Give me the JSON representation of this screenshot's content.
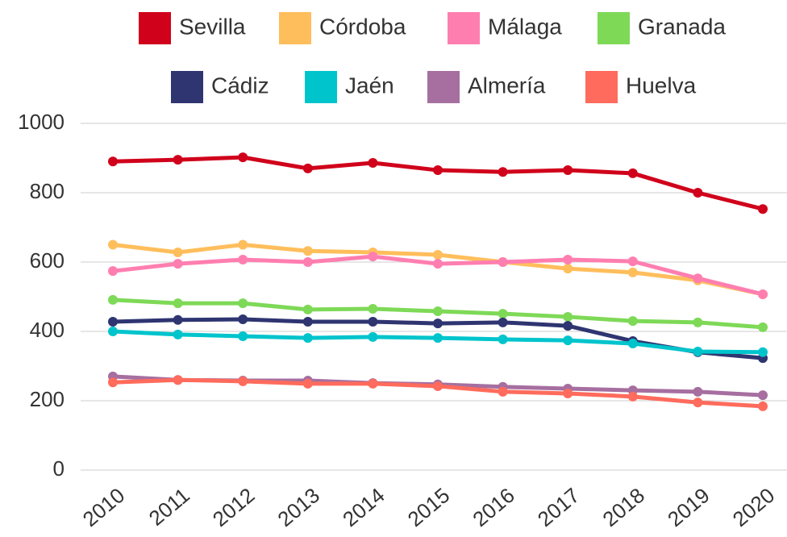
{
  "chart_data": {
    "type": "line",
    "x": [
      "2010",
      "2011",
      "2012",
      "2013",
      "2014",
      "2015",
      "2016",
      "2017",
      "2018",
      "2019",
      "2020"
    ],
    "ylim": [
      0,
      1000
    ],
    "yticks": [
      0,
      200,
      400,
      600,
      800,
      1000
    ],
    "grid": true,
    "legend": "top",
    "series": [
      {
        "name": "Sevilla",
        "color": "#d0021b",
        "values": [
          890,
          895,
          902,
          870,
          886,
          865,
          860,
          865,
          856,
          800,
          753
        ]
      },
      {
        "name": "Córdoba",
        "color": "#ffbe5c",
        "values": [
          650,
          628,
          650,
          632,
          628,
          621,
          600,
          581,
          570,
          547,
          507
        ]
      },
      {
        "name": "Málaga",
        "color": "#ff7eb0",
        "values": [
          574,
          595,
          607,
          600,
          616,
          595,
          600,
          607,
          602,
          553,
          507
        ]
      },
      {
        "name": "Granada",
        "color": "#7ed957",
        "values": [
          491,
          481,
          481,
          463,
          465,
          458,
          451,
          442,
          430,
          426,
          412
        ]
      },
      {
        "name": "Cádiz",
        "color": "#2f3571",
        "values": [
          428,
          433,
          435,
          428,
          428,
          423,
          426,
          416,
          372,
          340,
          323
        ]
      },
      {
        "name": "Jaén",
        "color": "#00c4cc",
        "values": [
          400,
          391,
          386,
          381,
          384,
          381,
          377,
          374,
          365,
          342,
          340
        ]
      },
      {
        "name": "Almería",
        "color": "#a66fa0",
        "values": [
          270,
          260,
          258,
          258,
          251,
          247,
          240,
          235,
          230,
          226,
          216
        ]
      },
      {
        "name": "Huelva",
        "color": "#ff6b5c",
        "values": [
          253,
          260,
          256,
          249,
          249,
          242,
          226,
          221,
          212,
          195,
          184
        ]
      }
    ]
  }
}
